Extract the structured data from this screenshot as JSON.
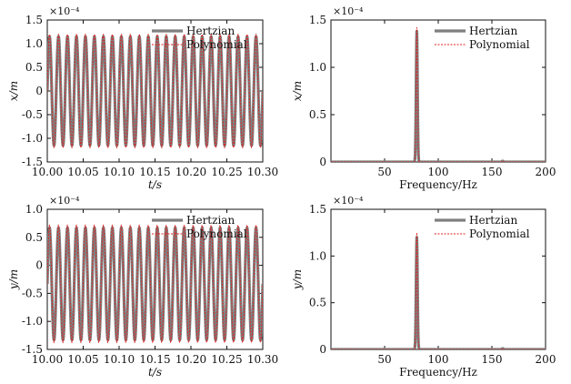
{
  "colors": {
    "hertzian": "#7f7f7f",
    "polynomial": "#e02020",
    "axis": "#111111"
  },
  "chart_data": [
    {
      "id": "x-time",
      "type": "line",
      "xlabel": "t/s",
      "ylabel": "x/m",
      "multiplier": "×10⁻⁴",
      "xlim": [
        10.0,
        10.3
      ],
      "ylim": [
        -1.5,
        1.5
      ],
      "xticks": [
        "10.00",
        "10.05",
        "10.10",
        "10.15",
        "10.20",
        "10.25",
        "10.30"
      ],
      "yticks": [
        "-1.5",
        "-1.0",
        "-0.5",
        "0",
        "0.5",
        "1.0",
        "1.5"
      ],
      "legend": "top-right",
      "series": [
        {
          "name": "Hertzian",
          "kind": "sine",
          "frequency_hz": 80,
          "amplitude": 1.15,
          "offset": 0.0,
          "phase_deg": 0
        },
        {
          "name": "Polynomial",
          "kind": "sine",
          "frequency_hz": 80,
          "amplitude": 1.2,
          "offset": 0.0,
          "phase_deg": 0
        }
      ]
    },
    {
      "id": "x-freq",
      "type": "line",
      "xlabel": "Frequency/Hz",
      "ylabel": "x/m",
      "multiplier": "×10⁻⁴",
      "xlim": [
        0,
        200
      ],
      "ylim": [
        0,
        1.5
      ],
      "xticks": [
        "50",
        "100",
        "150",
        "200"
      ],
      "yticks": [
        "0",
        "0.5",
        "1.0",
        "1.5"
      ],
      "legend": "top-right",
      "series": [
        {
          "name": "Hertzian",
          "kind": "peaks",
          "peaks": [
            {
              "x": 80,
              "y": 1.38
            },
            {
              "x": 160,
              "y": 0.01
            }
          ]
        },
        {
          "name": "Polynomial",
          "kind": "peaks",
          "peaks": [
            {
              "x": 80,
              "y": 1.42
            },
            {
              "x": 160,
              "y": 0.01
            }
          ]
        }
      ]
    },
    {
      "id": "y-time",
      "type": "line",
      "xlabel": "t/s",
      "ylabel": "y/m",
      "multiplier": "×10⁻⁴",
      "xlim": [
        10.0,
        10.3
      ],
      "ylim": [
        -1.5,
        1.0
      ],
      "xticks": [
        "10.00",
        "10.05",
        "10.10",
        "10.15",
        "10.20",
        "10.25",
        "10.30"
      ],
      "yticks": [
        "-1.5",
        "-1.0",
        "-0.5",
        "0",
        "0.5",
        "1.0"
      ],
      "legend": "top-right",
      "series": [
        {
          "name": "Hertzian",
          "kind": "sine",
          "frequency_hz": 80,
          "amplitude": 1.0,
          "offset": -0.33,
          "phase_deg": 0
        },
        {
          "name": "Polynomial",
          "kind": "sine",
          "frequency_hz": 80,
          "amplitude": 1.05,
          "offset": -0.33,
          "phase_deg": 0
        }
      ]
    },
    {
      "id": "y-freq",
      "type": "line",
      "xlabel": "Frequency/Hz",
      "ylabel": "y/m",
      "multiplier": "×10⁻⁴",
      "xlim": [
        0,
        200
      ],
      "ylim": [
        0,
        1.5
      ],
      "xticks": [
        "50",
        "100",
        "150",
        "200"
      ],
      "yticks": [
        "0",
        "0.5",
        "1.0",
        "1.5"
      ],
      "legend": "top-right",
      "series": [
        {
          "name": "Hertzian",
          "kind": "peaks",
          "peaks": [
            {
              "x": 80,
              "y": 1.2
            },
            {
              "x": 160,
              "y": 0.01
            }
          ]
        },
        {
          "name": "Polynomial",
          "kind": "peaks",
          "peaks": [
            {
              "x": 80,
              "y": 1.25
            },
            {
              "x": 160,
              "y": 0.01
            }
          ]
        }
      ]
    }
  ]
}
